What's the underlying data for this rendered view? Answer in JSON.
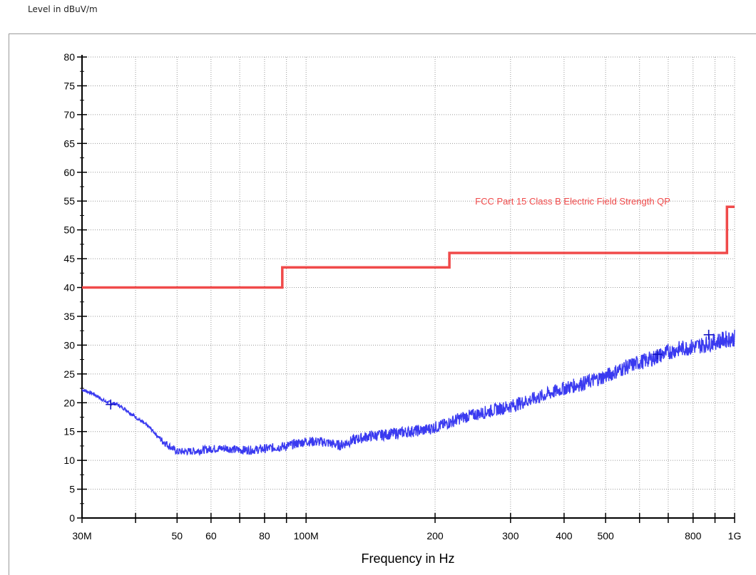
{
  "y_axis_title": "Level in dBuV/m",
  "colors": {
    "limit": "#f04a4a",
    "trace": "#3a3af0",
    "marker": "#1010c0",
    "grid": "#9a9a9a",
    "axis": "#000000"
  },
  "chart_data": {
    "type": "line",
    "xscale": "log",
    "xlabel": "Frequency in Hz",
    "ylabel": "Level in dBuV/m",
    "xlim": [
      30000000,
      1000000000
    ],
    "ylim": [
      0,
      80
    ],
    "grid": true,
    "x_ticks": [
      {
        "value": 30000000,
        "label": "30M"
      },
      {
        "value": 50000000,
        "label": "50"
      },
      {
        "value": 60000000,
        "label": "60"
      },
      {
        "value": 80000000,
        "label": "80"
      },
      {
        "value": 100000000,
        "label": "100M"
      },
      {
        "value": 200000000,
        "label": "200"
      },
      {
        "value": 300000000,
        "label": "300"
      },
      {
        "value": 400000000,
        "label": "400"
      },
      {
        "value": 500000000,
        "label": "500"
      },
      {
        "value": 800000000,
        "label": "800"
      },
      {
        "value": 1000000000,
        "label": "1G"
      }
    ],
    "y_ticks": [
      0,
      5,
      10,
      15,
      20,
      25,
      30,
      35,
      40,
      45,
      50,
      55,
      60,
      65,
      70,
      75,
      80
    ],
    "series": [
      {
        "name": "FCC Part 15 Class B Electric Field Strength QP",
        "role": "limit",
        "x": [
          30000000,
          88000000,
          88000000,
          216000000,
          216000000,
          960000000,
          960000000,
          1000000000
        ],
        "y": [
          40,
          40,
          43.5,
          43.5,
          46,
          46,
          54,
          54
        ]
      },
      {
        "role": "measurement",
        "x": [
          30000000,
          32000000,
          34000000,
          36000000,
          38000000,
          40000000,
          43000000,
          46000000,
          50000000,
          55000000,
          60000000,
          65000000,
          70000000,
          75000000,
          80000000,
          90000000,
          100000000,
          110000000,
          120000000,
          130000000,
          140000000,
          150000000,
          170000000,
          190000000,
          210000000,
          230000000,
          250000000,
          280000000,
          300000000,
          350000000,
          400000000,
          450000000,
          500000000,
          550000000,
          600000000,
          650000000,
          700000000,
          750000000,
          800000000,
          850000000,
          900000000,
          950000000,
          1000000000
        ],
        "y": [
          22.3,
          21.5,
          20.2,
          19.8,
          18.8,
          17.5,
          15.8,
          13.5,
          11.5,
          11.6,
          12.0,
          12.1,
          11.8,
          11.8,
          12.0,
          12.5,
          13.3,
          13.2,
          12.6,
          13.6,
          14.2,
          14.4,
          14.9,
          15.3,
          16.2,
          17.4,
          18.0,
          18.9,
          19.4,
          21.0,
          22.5,
          23.5,
          24.6,
          26.0,
          27.0,
          27.8,
          28.8,
          29.4,
          29.7,
          30.1,
          30.6,
          31.0,
          31.2
        ],
        "noise_dB": 2.5
      }
    ],
    "markers": [
      {
        "x": 35000000,
        "y": 19.7
      },
      {
        "x": 660000000,
        "y": 28.4
      },
      {
        "x": 870000000,
        "y": 31.8
      }
    ],
    "annotations": [
      {
        "text": "FCC Part 15 Class B Electric Field Strength QP",
        "x": 248000000,
        "y": 55
      }
    ]
  }
}
